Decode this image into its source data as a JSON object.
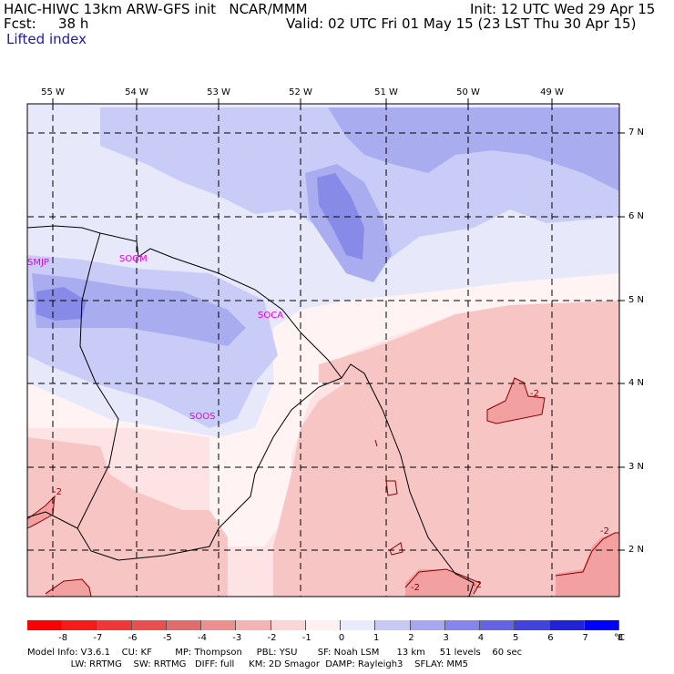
{
  "header": {
    "model_line": "HAIC-HIWC 13km ARW-GFS init   NCAR/MMM",
    "init_line": "Init: 12 UTC Wed 29 Apr 15",
    "fcst_label": "Fcst:",
    "fcst_value": "38 h",
    "valid_line": "Valid: 02 UTC Fri 01 May 15 (23 LST Thu 30 Apr 15)",
    "field_name": "Lifted index"
  },
  "map": {
    "lon_labels": [
      "55 W",
      "54 W",
      "53 W",
      "52 W",
      "51 W",
      "50 W",
      "49 W"
    ],
    "lat_labels": [
      "7 N",
      "6 N",
      "5 N",
      "4 N",
      "3 N",
      "2 N"
    ],
    "stations": [
      "SMJP",
      "SOGM",
      "SOCA",
      "SOOS"
    ],
    "contour_labels": [
      "-2",
      "-2",
      "-2",
      "-2",
      "-2"
    ],
    "colors": {
      "neg_light": "#fde0e0",
      "neg_mid": "#f8c4c4",
      "neg_strong": "#f29a9a",
      "near_zero": "#fff5f5",
      "pos_1": "#e9e9fb",
      "pos_2": "#c9cdf5",
      "pos_3": "#a9adf0",
      "pos_4": "#8a8ee8",
      "contour": "#8b0000",
      "coast": "#000000",
      "station": "#e000e0"
    }
  },
  "colorbar": {
    "unit": "°C",
    "labels": [
      "-8",
      "-7",
      "-6",
      "-5",
      "-4",
      "-3",
      "-2",
      "-1",
      "0",
      "1",
      "2",
      "3",
      "4",
      "5",
      "6",
      "7",
      "8"
    ],
    "colors": [
      "#ff0000",
      "#f81b1b",
      "#f03636",
      "#e85050",
      "#e06c6c",
      "#ee8f8f",
      "#f6b3b3",
      "#fbd6d6",
      "#fff1f1",
      "#eaeaff",
      "#c8c8f7",
      "#a6a6f1",
      "#8585eb",
      "#6363e4",
      "#4242dd",
      "#2121d6",
      "#0000ff"
    ]
  },
  "footer": {
    "line1": "Model Info: V3.6.1    CU: KF        MP: Thompson     PBL: YSU       SF: Noah LSM      13 km     51 levels    60 sec",
    "line2": "               LW: RRTMG    SW: RRTMG   DIFF: full     KM: 2D Smagor  DAMP: Rayleigh3    SFLAY: MM5"
  }
}
